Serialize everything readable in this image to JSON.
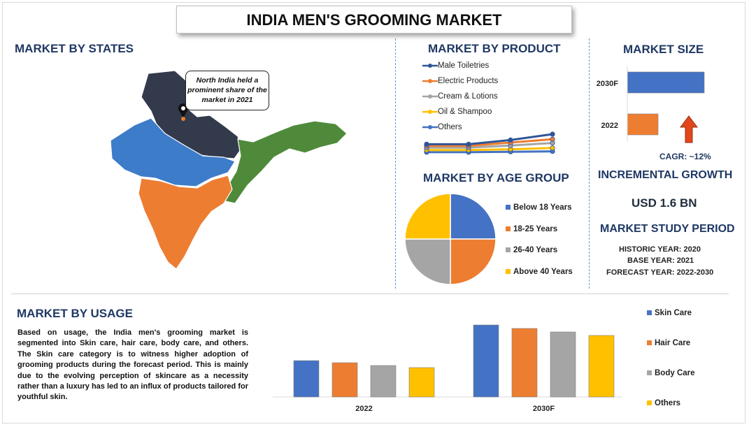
{
  "title": "INDIA MEN'S GROOMING MARKET",
  "states": {
    "heading": "MARKET BY STATES",
    "callout": "North India held a prominent share of the market in 2021",
    "colors": {
      "north": "#323a4c",
      "central": "#3d7cc9",
      "south": "#ed7d31",
      "east": "#4f8a3a"
    }
  },
  "product": {
    "heading": "MARKET BY PRODUCT",
    "chart_data": {
      "type": "line",
      "series": [
        {
          "name": "Male Toiletries",
          "color": "#2f5597",
          "values": [
            0.42,
            0.42,
            0.62,
            0.9
          ]
        },
        {
          "name": "Electric Products",
          "color": "#ed7d31",
          "values": [
            0.34,
            0.34,
            0.5,
            0.66
          ]
        },
        {
          "name": "Cream & Lotions",
          "color": "#a5a5a5",
          "values": [
            0.26,
            0.26,
            0.36,
            0.48
          ]
        },
        {
          "name": "Oil & Shampoo",
          "color": "#ffc000",
          "values": [
            0.14,
            0.14,
            0.18,
            0.24
          ]
        },
        {
          "name": "Others",
          "color": "#4472c4",
          "values": [
            0.04,
            0.04,
            0.06,
            0.08
          ]
        }
      ],
      "legend_position": "top"
    }
  },
  "size": {
    "heading": "MARKET SIZE",
    "chart_data": {
      "type": "bar",
      "orientation": "horizontal",
      "categories": [
        "2030F",
        "2022"
      ],
      "values": [
        1.0,
        0.4
      ],
      "colors": [
        "#4472c4",
        "#ed7d31"
      ]
    },
    "arrow_color": "#e0471b",
    "cagr": "CAGR:  ~12%"
  },
  "age": {
    "heading": "MARKET BY AGE GROUP",
    "chart_data": {
      "type": "pie",
      "labels": [
        "Below 18 Years",
        "18-25 Years",
        "26-40 Years",
        "Above 40 Years"
      ],
      "values": [
        25,
        25,
        25,
        25
      ],
      "colors": [
        "#4472c4",
        "#ed7d31",
        "#a5a5a5",
        "#ffc000"
      ],
      "legend_position": "right"
    }
  },
  "growth": {
    "heading": "INCREMENTAL GROWTH",
    "value": "USD 1.6 BN"
  },
  "period": {
    "heading": "MARKET STUDY PERIOD",
    "historic": "HISTORIC YEAR: 2020",
    "base": "BASE YEAR: 2021",
    "forecast": "FORECAST YEAR: 2022-2030"
  },
  "usage": {
    "heading": "MARKET BY USAGE",
    "text": "Based on usage, the India men's grooming market is segmented into Skin care, hair care, body care, and others. The Skin care category is to witness higher adoption of grooming products during the forecast period. This is mainly due to the evolving perception of skincare as a necessity rather than a luxury has led to an influx of products tailored for youthful skin.",
    "chart_data": {
      "type": "bar",
      "categories": [
        "2022",
        "2030F"
      ],
      "series": [
        {
          "name": "Skin Care",
          "color": "#4472c4",
          "values": [
            52,
            103
          ]
        },
        {
          "name": "Hair Care",
          "color": "#ed7d31",
          "values": [
            49,
            98
          ]
        },
        {
          "name": "Body Care",
          "color": "#a5a5a5",
          "values": [
            45,
            93
          ]
        },
        {
          "name": "Others",
          "color": "#ffc000",
          "values": [
            42,
            88
          ]
        }
      ],
      "legend_position": "right"
    }
  }
}
